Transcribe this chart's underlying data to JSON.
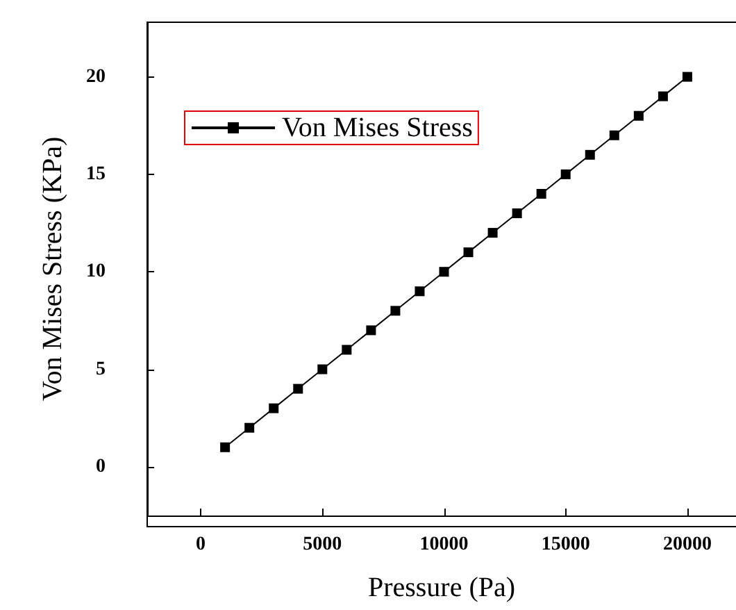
{
  "chart_data": {
    "type": "line",
    "xlabel": "Pressure (Pa)",
    "ylabel": "Von Mises Stress (KPa)",
    "x": [
      1000,
      2000,
      3000,
      4000,
      5000,
      6000,
      7000,
      8000,
      9000,
      10000,
      11000,
      12000,
      13000,
      14000,
      15000,
      16000,
      17000,
      18000,
      19000,
      20000
    ],
    "series": [
      {
        "name": "Von Mises Stress",
        "color": "#000000",
        "values": [
          1,
          2,
          3,
          4,
          5,
          6,
          7,
          8,
          9,
          10,
          11,
          12,
          13,
          14,
          15,
          16,
          17,
          18,
          19,
          20
        ]
      }
    ],
    "xlim": [
      -2200,
      22000
    ],
    "xticks": [
      0,
      5000,
      10000,
      15000,
      20000
    ],
    "ylim": [
      -2.5,
      22.8
    ],
    "yticks": [
      0,
      5,
      10,
      15,
      20
    ],
    "grid": false,
    "legend": "top left",
    "marker": "square",
    "line_style": "solid"
  }
}
